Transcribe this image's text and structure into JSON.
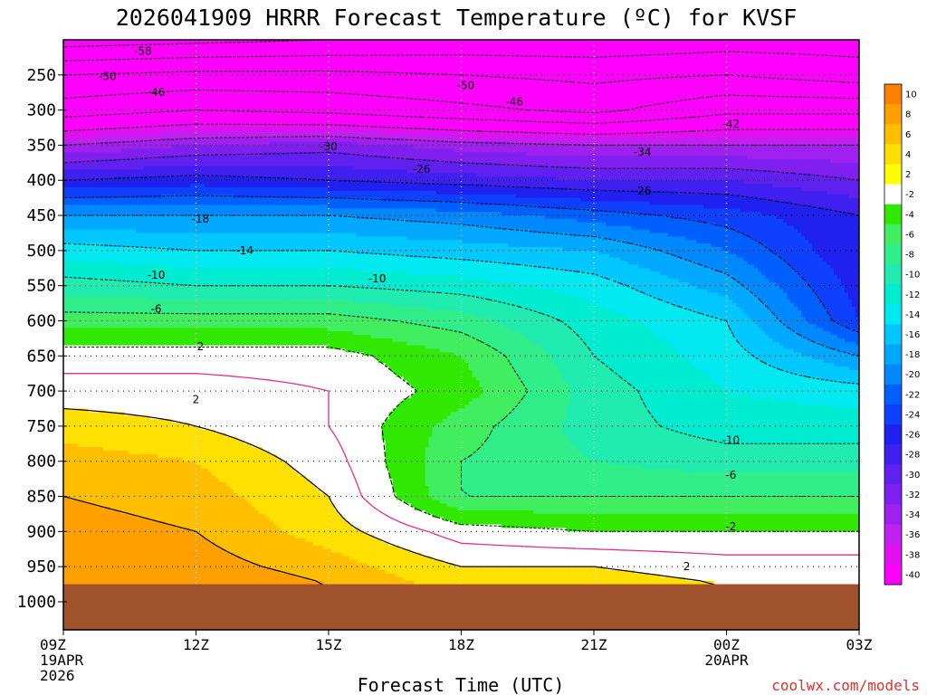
{
  "chart_data": {
    "type": "heatmap",
    "title": "2026041909 HRRR Forecast Temperature (ºC) for KVSF",
    "xlabel": "Forecast Time (UTC)",
    "ylabel": "",
    "credit": "coolwx.com/models",
    "x_hours": [
      0,
      3,
      6,
      9,
      12,
      15,
      18
    ],
    "x_labels": [
      {
        "hour": 0,
        "lines": [
          "09Z",
          "19APR",
          "2026"
        ]
      },
      {
        "hour": 3,
        "lines": [
          "12Z"
        ]
      },
      {
        "hour": 6,
        "lines": [
          "15Z"
        ]
      },
      {
        "hour": 9,
        "lines": [
          "18Z"
        ]
      },
      {
        "hour": 12,
        "lines": [
          "21Z"
        ]
      },
      {
        "hour": 15,
        "lines": [
          "00Z",
          "20APR"
        ]
      },
      {
        "hour": 18,
        "lines": [
          "03Z"
        ]
      }
    ],
    "pressure_levels": [
      250,
      300,
      350,
      400,
      450,
      500,
      550,
      600,
      650,
      700,
      750,
      800,
      850,
      900,
      950,
      1000
    ],
    "ylim": [
      200,
      1040
    ],
    "ground_level_hpa": 975,
    "colorbar": {
      "ticks": [
        10,
        8,
        6,
        4,
        2,
        -2,
        -4,
        -6,
        -8,
        -10,
        -12,
        -14,
        -16,
        -18,
        -20,
        -22,
        -24,
        -26,
        -28,
        -30,
        -32,
        -34,
        -36,
        -38,
        -40
      ],
      "colors": [
        "#ff8000",
        "#ffa000",
        "#ffbf00",
        "#ffe000",
        "#ffff00",
        "#ffffff",
        "#30e800",
        "#40ee60",
        "#30ee8a",
        "#20ecb0",
        "#00ecd0",
        "#00e8f0",
        "#00c8ff",
        "#00a8ff",
        "#0088ff",
        "#0060ff",
        "#1040ff",
        "#2020f0",
        "#4020f0",
        "#6020f0",
        "#8020f0",
        "#a020f0",
        "#c020f0",
        "#e010f0",
        "#ff00ff"
      ]
    },
    "temperature_profiles": [
      {
        "hour": 0,
        "pressure": [
          200,
          250,
          300,
          350,
          400,
          450,
          500,
          550,
          600,
          650,
          700,
          750,
          800,
          850,
          900,
          950,
          975
        ],
        "temp": [
          -60,
          -50,
          -44,
          -34,
          -26,
          -18,
          -13,
          -9,
          -5,
          -1,
          1,
          3,
          5,
          6,
          7,
          8,
          8
        ]
      },
      {
        "hour": 3,
        "pressure": [
          200,
          250,
          300,
          350,
          400,
          450,
          500,
          550,
          600,
          650,
          700,
          750,
          800,
          850,
          900,
          950,
          975
        ],
        "temp": [
          -59,
          -49,
          -42,
          -32,
          -25,
          -18,
          -14,
          -10,
          -5,
          -1,
          1,
          2,
          4,
          5,
          6,
          7,
          8
        ]
      },
      {
        "hour": 6,
        "pressure": [
          200,
          250,
          300,
          350,
          400,
          450,
          500,
          550,
          600,
          650,
          700,
          750,
          800,
          850,
          900,
          950,
          975
        ],
        "temp": [
          -58,
          -49,
          -43,
          -31,
          -26,
          -18,
          -14,
          -10,
          -5,
          -1,
          0,
          0,
          1,
          2,
          3,
          5,
          6
        ]
      },
      {
        "hour": 9,
        "pressure": [
          200,
          250,
          300,
          350,
          400,
          450,
          500,
          550,
          600,
          650,
          700,
          750,
          800,
          850,
          900,
          950,
          975
        ],
        "temp": [
          -57,
          -50,
          -45,
          -33,
          -27,
          -19,
          -15,
          -11,
          -7,
          -4,
          -3,
          -5,
          -6,
          -6,
          -1,
          2,
          3
        ]
      },
      {
        "hour": 12,
        "pressure": [
          200,
          250,
          300,
          350,
          400,
          450,
          500,
          550,
          600,
          650,
          700,
          750,
          800,
          850,
          900,
          950,
          975
        ],
        "temp": [
          -57,
          -51,
          -47,
          -34,
          -28,
          -21,
          -16,
          -13,
          -11,
          -10,
          -9,
          -9,
          -8,
          -6,
          -2,
          2,
          3
        ]
      },
      {
        "hour": 15,
        "pressure": [
          200,
          250,
          300,
          350,
          400,
          450,
          500,
          550,
          600,
          650,
          700,
          750,
          800,
          850,
          900,
          950,
          975
        ],
        "temp": [
          -56,
          -50,
          -43,
          -34,
          -28,
          -23,
          -20,
          -17,
          -14,
          -13,
          -12,
          -11,
          -9,
          -6,
          -2,
          1,
          2
        ]
      },
      {
        "hour": 18,
        "pressure": [
          200,
          250,
          300,
          350,
          400,
          450,
          500,
          550,
          600,
          650,
          700,
          750,
          800,
          850,
          900,
          950,
          975
        ],
        "temp": [
          -56,
          -52,
          -43,
          -34,
          -30,
          -26,
          -26,
          -25,
          -24,
          -18,
          -13,
          -11,
          -9,
          -6,
          -2,
          1,
          2
        ]
      }
    ],
    "contour_labels": [
      {
        "text": "-58",
        "hour": 1.8,
        "p": 216
      },
      {
        "text": "-50",
        "hour": 1.0,
        "p": 252
      },
      {
        "text": "-46",
        "hour": 2.1,
        "p": 275
      },
      {
        "text": "-50",
        "hour": 9.1,
        "p": 265
      },
      {
        "text": "-46",
        "hour": 10.2,
        "p": 288
      },
      {
        "text": "-42",
        "hour": 15.1,
        "p": 320
      },
      {
        "text": "-30",
        "hour": 6.0,
        "p": 352
      },
      {
        "text": "-34",
        "hour": 13.1,
        "p": 360
      },
      {
        "text": "-26",
        "hour": 8.1,
        "p": 384
      },
      {
        "text": "-26",
        "hour": 13.1,
        "p": 415
      },
      {
        "text": "-18",
        "hour": 3.1,
        "p": 455
      },
      {
        "text": "-14",
        "hour": 4.1,
        "p": 500
      },
      {
        "text": "-10",
        "hour": 2.1,
        "p": 535
      },
      {
        "text": "-10",
        "hour": 7.1,
        "p": 540
      },
      {
        "text": "-6",
        "hour": 2.1,
        "p": 583
      },
      {
        "text": "2",
        "hour": 3.1,
        "p": 637
      },
      {
        "text": "2",
        "hour": 3.0,
        "p": 712
      },
      {
        "text": "-10",
        "hour": 15.1,
        "p": 770
      },
      {
        "text": "-6",
        "hour": 15.1,
        "p": 820
      },
      {
        "text": "-2",
        "hour": 15.1,
        "p": 893
      },
      {
        "text": "2",
        "hour": 14.1,
        "p": 950
      }
    ]
  }
}
